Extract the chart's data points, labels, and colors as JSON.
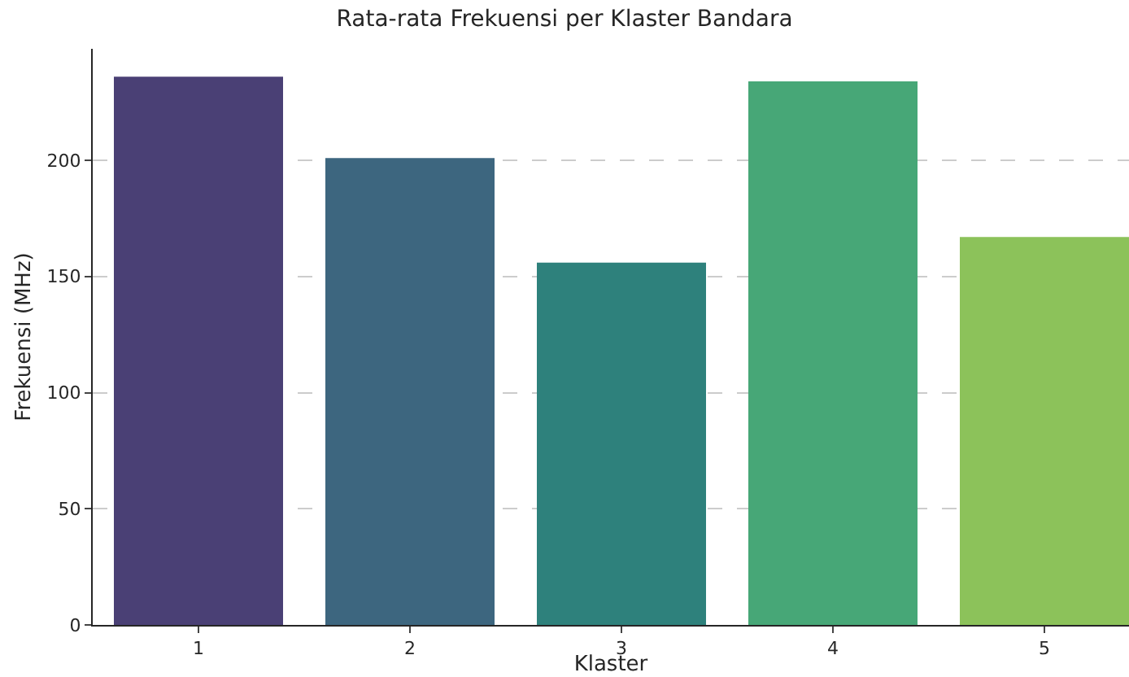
{
  "chart_data": {
    "type": "bar",
    "title": "Rata-rata Frekuensi per Klaster Bandara",
    "xlabel": "Klaster",
    "ylabel": "Frekuensi (MHz)",
    "categories": [
      "1",
      "2",
      "3",
      "4",
      "5"
    ],
    "values": [
      236,
      201,
      156,
      234,
      167
    ],
    "colors": [
      "#4a4075",
      "#3d667f",
      "#2e817c",
      "#47a777",
      "#8cc25a"
    ],
    "ylim": [
      0,
      248
    ],
    "yticks": [
      0,
      50,
      100,
      150,
      200
    ],
    "grid": "y"
  }
}
